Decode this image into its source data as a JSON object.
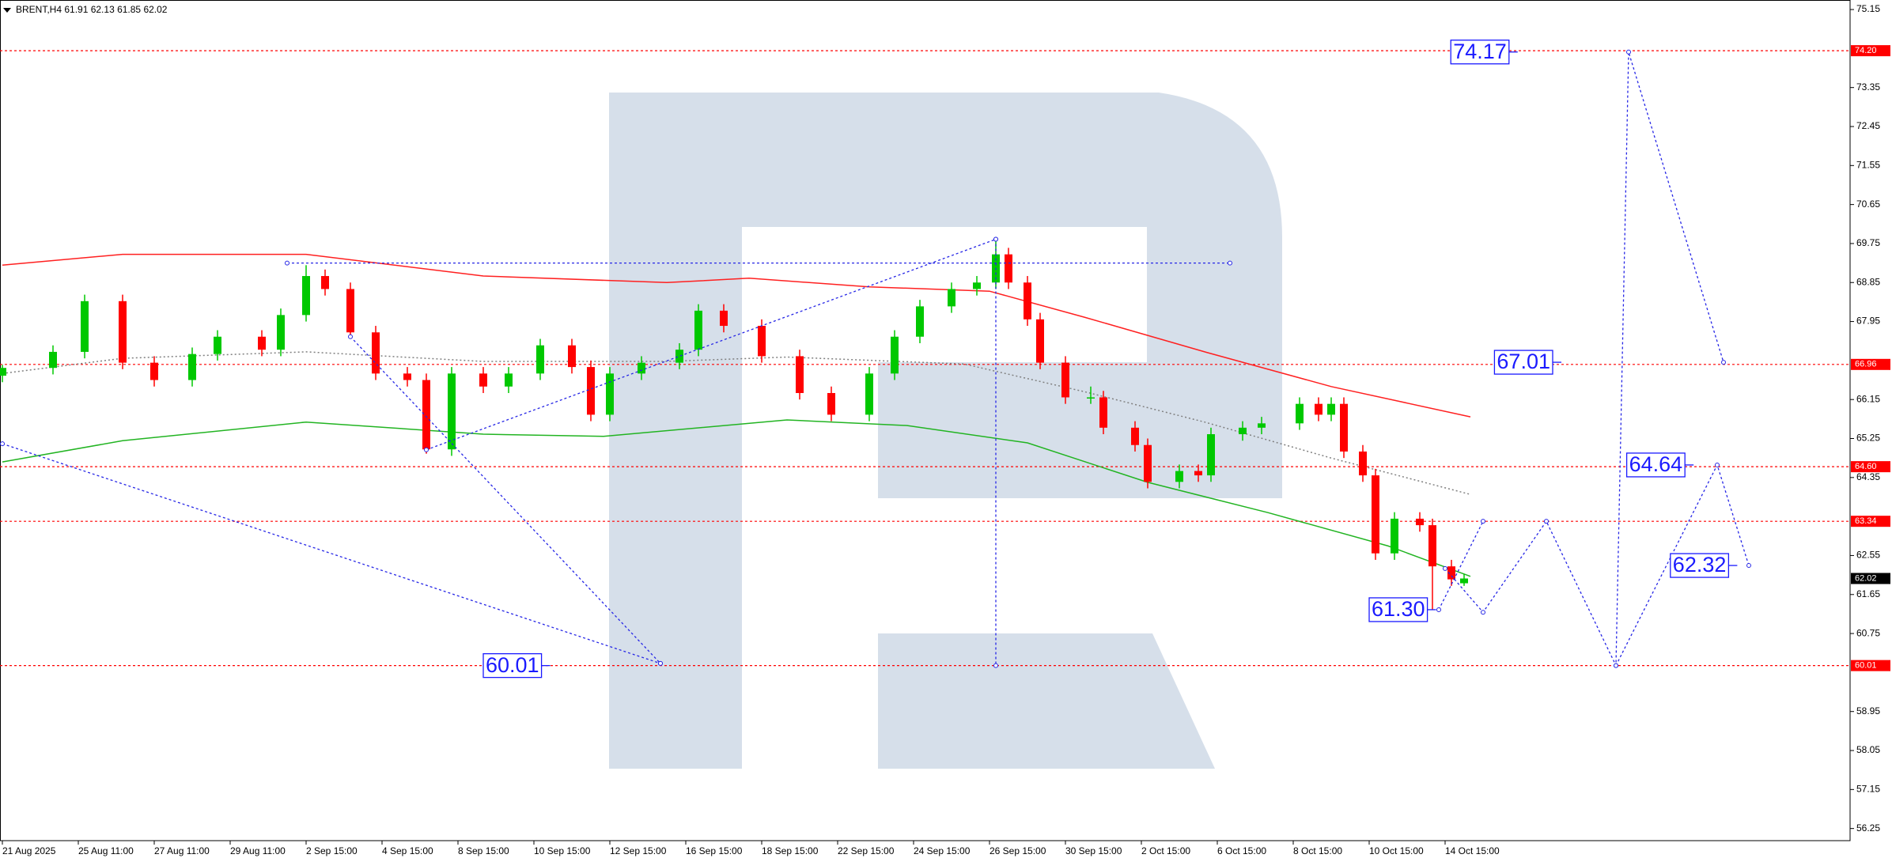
{
  "chart_data": {
    "type": "candlestick",
    "header": "BRENT,H4 61.91 62.13 61.85 62.02",
    "up_color": "#00c800",
    "down_color": "#ff0000",
    "x": [
      0,
      8,
      13,
      19,
      24,
      30,
      34,
      41,
      44,
      48,
      51,
      55,
      59,
      64,
      67,
      71,
      76,
      80,
      85,
      90,
      93,
      96,
      101,
      107,
      110,
      114,
      120,
      126,
      131,
      137,
      141,
      145,
      150,
      154,
      157,
      159,
      162,
      164,
      168,
      172,
      174,
      179,
      181,
      186,
      189,
      191,
      196,
      199,
      205,
      208,
      210,
      212,
      215,
      217,
      220,
      224,
      226,
      229,
      231
    ],
    "open": [
      66.7,
      66.88,
      67.25,
      68.42,
      67.0,
      66.6,
      67.2,
      67.6,
      67.3,
      68.1,
      69.0,
      68.7,
      67.7,
      66.75,
      66.6,
      65.0,
      66.75,
      66.45,
      66.75,
      67.4,
      66.9,
      65.8,
      66.75,
      67.0,
      67.3,
      68.2,
      67.85,
      67.15,
      66.3,
      65.8,
      66.75,
      67.6,
      68.3,
      68.7,
      68.85,
      69.5,
      68.85,
      68.0,
      67.0,
      66.2,
      66.2,
      65.5,
      65.1,
      64.25,
      64.5,
      64.4,
      65.35,
      65.5,
      65.6,
      66.05,
      65.8,
      66.05,
      64.95,
      64.4,
      62.6,
      63.4,
      63.25,
      62.3,
      61.91
    ],
    "high": [
      66.95,
      67.4,
      68.57,
      68.57,
      67.15,
      67.35,
      67.75,
      67.75,
      68.25,
      69.25,
      69.15,
      68.85,
      67.85,
      66.9,
      66.75,
      66.9,
      66.9,
      66.9,
      67.55,
      67.55,
      67.05,
      66.9,
      67.15,
      67.45,
      68.35,
      68.35,
      68.0,
      67.3,
      66.45,
      66.9,
      67.75,
      68.45,
      68.85,
      69.0,
      69.9,
      69.65,
      69.0,
      68.15,
      67.15,
      66.45,
      66.35,
      65.65,
      65.25,
      64.65,
      64.65,
      65.5,
      65.65,
      65.75,
      66.2,
      66.2,
      66.2,
      66.2,
      65.1,
      64.55,
      63.55,
      63.55,
      63.4,
      62.45,
      62.13
    ],
    "low": [
      66.55,
      66.73,
      67.1,
      66.85,
      66.45,
      66.45,
      67.05,
      67.15,
      67.15,
      67.95,
      68.55,
      67.55,
      66.6,
      66.45,
      64.9,
      64.85,
      66.3,
      66.3,
      66.6,
      66.75,
      65.65,
      65.65,
      66.6,
      66.85,
      67.15,
      67.7,
      67.0,
      66.15,
      65.65,
      65.65,
      66.6,
      67.45,
      68.15,
      68.55,
      68.7,
      68.7,
      67.85,
      66.85,
      66.05,
      66.05,
      65.35,
      64.95,
      64.1,
      64.1,
      64.25,
      64.25,
      65.2,
      65.35,
      65.45,
      65.65,
      65.65,
      64.8,
      64.25,
      62.45,
      62.45,
      63.1,
      61.3,
      61.85,
      61.85
    ],
    "close": [
      66.88,
      67.25,
      68.42,
      67.0,
      66.6,
      67.2,
      67.6,
      67.3,
      68.1,
      69.0,
      68.7,
      67.7,
      66.75,
      66.6,
      65.0,
      66.75,
      66.45,
      66.75,
      67.4,
      66.9,
      65.8,
      66.75,
      67.0,
      67.3,
      68.2,
      67.85,
      67.15,
      66.3,
      65.8,
      66.75,
      67.6,
      68.3,
      68.7,
      68.85,
      69.5,
      68.85,
      68.0,
      67.0,
      66.2,
      66.2,
      65.5,
      65.1,
      64.25,
      64.5,
      64.4,
      65.35,
      65.5,
      65.6,
      66.05,
      65.8,
      66.05,
      64.95,
      64.4,
      62.6,
      63.4,
      63.25,
      62.3,
      62.0,
      62.02
    ],
    "lines": [
      {
        "color": "#ff2020",
        "dash": "solid",
        "x": [
          0,
          19,
          48,
          76,
          105,
          118,
          137,
          156,
          171,
          190,
          210,
          232
        ],
        "values": [
          69.25,
          69.5,
          69.5,
          69.0,
          68.85,
          68.95,
          68.75,
          68.65,
          68.05,
          67.25,
          66.45,
          65.75
        ]
      },
      {
        "color": "#22b422",
        "dash": "solid",
        "x": [
          0,
          19,
          48,
          76,
          95,
          124,
          143,
          162,
          181,
          200,
          219,
          232
        ],
        "values": [
          64.71,
          65.2,
          65.63,
          65.35,
          65.3,
          65.68,
          65.55,
          65.15,
          64.24,
          63.54,
          62.77,
          62.07
        ]
      },
      {
        "color": "#808080",
        "dash": "dotted",
        "x": [
          0,
          19,
          48,
          76,
          105,
          124,
          152,
          171,
          190,
          210,
          232
        ],
        "values": [
          66.75,
          67.1,
          67.25,
          67.03,
          67.03,
          67.13,
          66.97,
          66.33,
          65.63,
          64.8,
          63.96
        ]
      }
    ],
    "forecast_color": "#2626e6",
    "forecast": [
      {
        "x": [
          45,
          194
        ],
        "values": [
          69.3,
          69.3
        ]
      },
      {
        "x": [
          67,
          157
        ],
        "values": [
          64.99,
          69.85
        ]
      },
      {
        "x": [
          0,
          104
        ],
        "values": [
          65.13,
          60.06
        ]
      },
      {
        "x": [
          55,
          104
        ],
        "values": [
          67.6,
          60.06
        ]
      },
      {
        "x": [
          157,
          157
        ],
        "values": [
          69.85,
          60.01
        ]
      },
      {
        "x": [
          228,
          234,
          244,
          255,
          257,
          272
        ],
        "values": [
          62.25,
          61.24,
          63.34,
          60.01,
          74.17,
          67.01
        ]
      },
      {
        "x": [
          227,
          234
        ],
        "values": [
          61.3,
          63.34
        ]
      },
      {
        "x": [
          255,
          271,
          276
        ],
        "values": [
          60.01,
          64.64,
          62.32
        ]
      }
    ],
    "annotations": [
      {
        "value": 74.17,
        "x": 233.5
      },
      {
        "value": 67.01,
        "x": 240.4
      },
      {
        "value": 64.64,
        "x": 261.3
      },
      {
        "value": 62.32,
        "x": 268.2
      },
      {
        "value": 61.3,
        "x": 220.6,
        "label": "61.30"
      },
      {
        "value": 60.01,
        "x": 80.6
      }
    ],
    "level_color": "#ff0000",
    "levels": [
      {
        "value": 74.2,
        "label": "74.20"
      },
      {
        "value": 66.96,
        "label": "66.96"
      },
      {
        "value": 64.6,
        "label": "64.60"
      },
      {
        "value": 63.34,
        "label": "63.34"
      },
      {
        "value": 60.01,
        "label": "60.01"
      }
    ],
    "current_price": 62.02,
    "xlim": [
      0,
      292
    ],
    "ylim": [
      55.97,
      75.37
    ],
    "xticks": [
      {
        "value": 0,
        "label": "21 Aug 2025"
      },
      {
        "value": 12,
        "label": "25 Aug 11:00"
      },
      {
        "value": 24,
        "label": "27 Aug 11:00"
      },
      {
        "value": 36,
        "label": "29 Aug 11:00"
      },
      {
        "value": 48,
        "label": "2 Sep 15:00"
      },
      {
        "value": 60,
        "label": "4 Sep 15:00"
      },
      {
        "value": 72,
        "label": "8 Sep 15:00"
      },
      {
        "value": 84,
        "label": "10 Sep 15:00"
      },
      {
        "value": 96,
        "label": "12 Sep 15:00"
      },
      {
        "value": 108,
        "label": "16 Sep 15:00"
      },
      {
        "value": 120,
        "label": "18 Sep 15:00"
      },
      {
        "value": 132,
        "label": "22 Sep 15:00"
      },
      {
        "value": 144,
        "label": "24 Sep 15:00"
      },
      {
        "value": 156,
        "label": "26 Sep 15:00"
      },
      {
        "value": 168,
        "label": "30 Sep 15:00"
      },
      {
        "value": 180,
        "label": "2 Oct 15:00"
      },
      {
        "value": 192,
        "label": "6 Oct 15:00"
      },
      {
        "value": 204,
        "label": "8 Oct 15:00"
      },
      {
        "value": 216,
        "label": "10 Oct 15:00"
      },
      {
        "value": 228,
        "label": "14 Oct 15:00"
      }
    ],
    "yticks": [
      75.15,
      73.35,
      72.45,
      71.55,
      70.65,
      69.75,
      68.85,
      67.95,
      66.15,
      65.25,
      64.35,
      62.55,
      61.65,
      60.75,
      58.95,
      58.05,
      57.15,
      56.25
    ]
  }
}
